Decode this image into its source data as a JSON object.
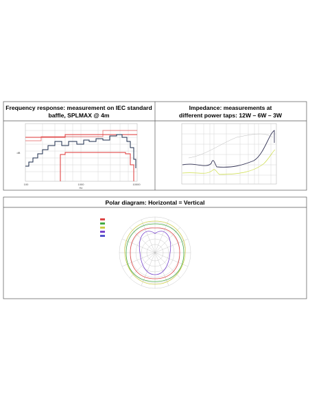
{
  "panels": [
    {
      "title_lines": [
        "Frequency response: measurement on IEC standard",
        "baffle, SPLMAX @ 4m"
      ],
      "x_labels": [
        "100",
        "1000",
        "10000"
      ],
      "x_unit": "Hz",
      "y_unit": "dB"
    },
    {
      "title_lines": [
        "Impedance: measurements at",
        "different power taps: 12W – 6W – 3W"
      ]
    },
    {
      "title": "Polar diagram: Horizontal = Vertical"
    }
  ]
}
